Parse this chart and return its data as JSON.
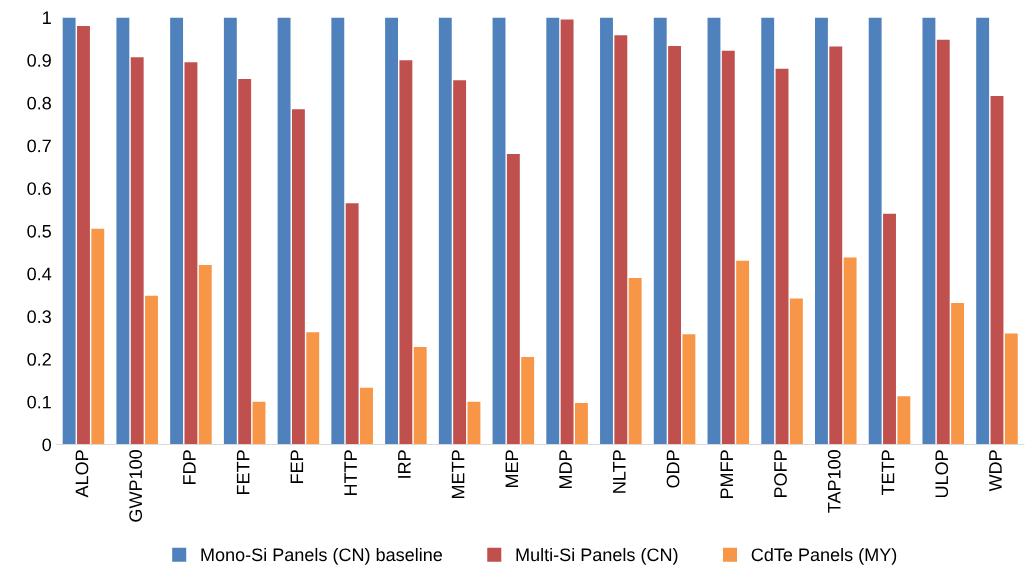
{
  "chart_data": {
    "type": "bar",
    "categories": [
      "ALOP",
      "GWP100",
      "FDP",
      "FETP",
      "FEP",
      "HTTP",
      "IRP",
      "METP",
      "MEP",
      "MDP",
      "NLTP",
      "ODP",
      "PMFP",
      "POFP",
      "TAP100",
      "TETP",
      "ULOP",
      "WDP"
    ],
    "series": [
      {
        "name": "Mono-Si Panels (CN) baseline",
        "color": "#4f81bd",
        "values": [
          1,
          1,
          1,
          1,
          1,
          1,
          1,
          1,
          1,
          1,
          1,
          1,
          1,
          1,
          1,
          1,
          1,
          1
        ]
      },
      {
        "name": "Multi-Si Panels (CN)",
        "color": "#c0504d",
        "values": [
          0.98,
          0.907,
          0.895,
          0.856,
          0.785,
          0.565,
          0.9,
          0.853,
          0.68,
          0.995,
          0.958,
          0.933,
          0.922,
          0.88,
          0.932,
          0.54,
          0.948,
          0.816
        ]
      },
      {
        "name": "CdTe Panels (MY)",
        "color": "#f79646",
        "values": [
          0.505,
          0.348,
          0.42,
          0.1,
          0.263,
          0.133,
          0.228,
          0.1,
          0.205,
          0.097,
          0.39,
          0.258,
          0.43,
          0.342,
          0.438,
          0.113,
          0.331,
          0.26
        ]
      }
    ],
    "ylim": [
      0,
      1
    ],
    "yticks": [
      0,
      0.1,
      0.2,
      0.3,
      0.4,
      0.5,
      0.6,
      0.7,
      0.8,
      0.9,
      1
    ],
    "grid": false,
    "legend": "bottom"
  }
}
